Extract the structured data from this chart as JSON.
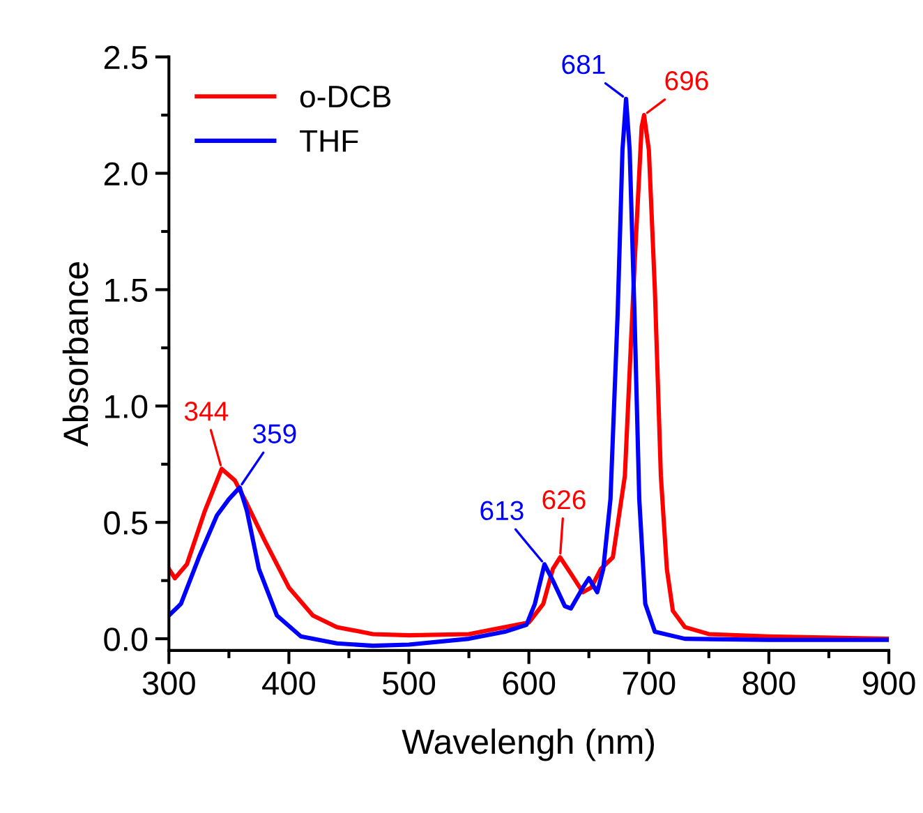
{
  "chart_data": {
    "type": "line",
    "xlabel": "Wavelengh (nm)",
    "ylabel": "Absorbance",
    "xlim": [
      300,
      900
    ],
    "ylim": [
      -0.05,
      2.5
    ],
    "xticks": [
      300,
      400,
      500,
      600,
      700,
      800,
      900
    ],
    "yticks": [
      {
        "value": 0,
        "label": "0.0"
      },
      0.5,
      {
        "value": 1,
        "label": "1.0"
      },
      1.5,
      {
        "value": 2,
        "label": "2.0"
      },
      2.5
    ],
    "legend": "top left",
    "grid": false,
    "marker": "none",
    "line_style": "solid",
    "series": [
      {
        "name": "o-DCB",
        "color": "#ff0000",
        "x": [
          300,
          305,
          315,
          330,
          344,
          355,
          365,
          380,
          400,
          420,
          440,
          470,
          500,
          550,
          570,
          600,
          612,
          620,
          626,
          635,
          645,
          652,
          660,
          670,
          680,
          688,
          694,
          696,
          700,
          705,
          710,
          715,
          720,
          730,
          750,
          800,
          900
        ],
        "values": [
          0.3,
          0.26,
          0.32,
          0.55,
          0.73,
          0.68,
          0.58,
          0.42,
          0.22,
          0.1,
          0.05,
          0.02,
          0.015,
          0.02,
          0.04,
          0.07,
          0.15,
          0.3,
          0.35,
          0.28,
          0.2,
          0.22,
          0.3,
          0.35,
          0.7,
          1.6,
          2.2,
          2.25,
          2.1,
          1.5,
          0.7,
          0.3,
          0.12,
          0.05,
          0.02,
          0.01,
          0.0
        ]
      },
      {
        "name": "THF",
        "color": "#0000ff",
        "x": [
          300,
          310,
          325,
          340,
          350,
          359,
          365,
          375,
          390,
          410,
          440,
          470,
          500,
          550,
          580,
          598,
          605,
          613,
          620,
          630,
          635,
          645,
          650,
          657,
          662,
          668,
          674,
          678,
          681,
          684,
          688,
          692,
          697,
          705,
          730,
          800,
          900
        ],
        "values": [
          0.1,
          0.15,
          0.35,
          0.53,
          0.6,
          0.65,
          0.55,
          0.3,
          0.1,
          0.01,
          -0.02,
          -0.03,
          -0.025,
          0.0,
          0.03,
          0.06,
          0.15,
          0.32,
          0.25,
          0.14,
          0.13,
          0.22,
          0.26,
          0.2,
          0.3,
          0.6,
          1.4,
          2.1,
          2.32,
          2.1,
          1.4,
          0.6,
          0.15,
          0.03,
          0.0,
          -0.005,
          -0.005
        ]
      }
    ],
    "annotations": [
      {
        "text": "344",
        "x": 344,
        "y": 0.73
      },
      {
        "text": "359",
        "x": 359,
        "y": 0.65
      },
      {
        "text": "613",
        "x": 613,
        "y": 0.32
      },
      {
        "text": "626",
        "x": 626,
        "y": 0.35
      },
      {
        "text": "681",
        "x": 681,
        "y": 2.32
      },
      {
        "text": "696",
        "x": 696,
        "y": 2.25
      }
    ]
  }
}
